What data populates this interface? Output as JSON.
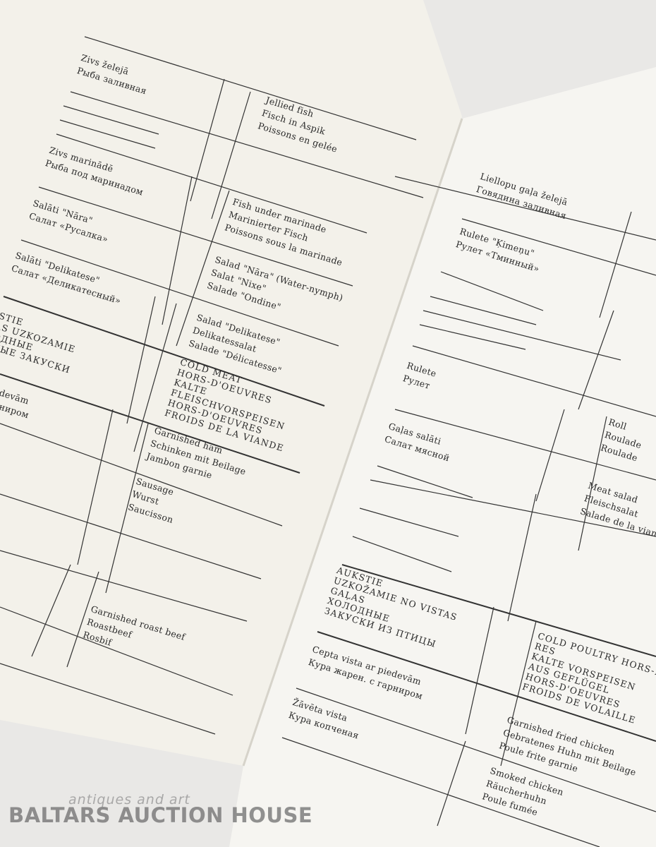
{
  "left_page": {
    "items": [
      {
        "lv": "Zivs želejā",
        "ru": "Рыба заливная",
        "en": "Jellied fish",
        "de": "Fisch in Aspik",
        "fr": "Poissons en gelée"
      },
      {
        "lv": "Zivs marinādē",
        "ru": "Рыба под маринадом",
        "en": "Fish under marinade",
        "de": "Marinierter Fisch",
        "fr": "Poissons sous la marinade"
      },
      {
        "lv": "Salāti \"Nāra\"",
        "ru": "Салат «Русалка»",
        "en": "Salad \"Nāra\" (Water-nymph)",
        "de": "Salat \"Nixe\"",
        "fr": "Salade \"Ondine\""
      },
      {
        "lv": "Salāti \"Delikatese\"",
        "ru": "Салат «Деликатесный»",
        "en": "Salad \"Delikatese\"",
        "de": "Delikatessalat",
        "fr": "Salade \"Délicatesse\""
      }
    ],
    "section": {
      "lv": [
        "AUKSTIE",
        "GAĻAS UZKOZAMIE"
      ],
      "ru": [
        "ХОЛОДНЫЕ",
        "МЯСНЫЕ ЗАКУСКИ"
      ],
      "foreign": [
        "COLD MEAT",
        "HORS-D'OEUVRES",
        "KALTE",
        "FLEISCHVORSPEISEN",
        "HORS-D'OEUVRES",
        "FROIDS DE LA VIANDE"
      ]
    },
    "meat_items": [
      {
        "lv": "Šķiņķis ar piedevām",
        "ru": "Ветчина с гарниром",
        "en": "Garnished ham",
        "de": "Schinken mit Beilage",
        "fr": "Jambon garnie"
      },
      {
        "en": "Sausage",
        "de": "Wurst",
        "fr": "Saucisson"
      },
      {
        "en": "Garnished roast beef",
        "de": "Roastbeef",
        "fr": "Rosbif"
      }
    ]
  },
  "right_page": {
    "items": [
      {
        "lv": "Liellopu gaļa želejā",
        "ru": "Говядина заливная"
      },
      {
        "lv": "Rulete \"Ķimeņu\"",
        "ru": "Рулет «Тминный»"
      },
      {
        "lv": "Rulete",
        "ru": "Рулет",
        "en": "Roll",
        "de": "Roulade",
        "fr": "Roulade"
      },
      {
        "lv": "Gaļas salāti",
        "ru": "Салат мясной",
        "en": "Meat salad",
        "de": "Fleischsalat",
        "fr": "Salade de la viande"
      }
    ],
    "section": {
      "lv": [
        "AUKSTIE",
        "UZKOŽAMIE NO VISTAS",
        "GAĻAS"
      ],
      "ru": [
        "ХОЛОДНЫЕ",
        "ЗАКУСКИ ИЗ ПТИЦЫ"
      ],
      "foreign": [
        "COLD POULTRY HORS-D'OEUV-",
        "RES",
        "KALTE VORSPEISEN",
        "AUS GEFLÜGEL",
        "HORS-D'OEUVRES",
        "FROIDS DE VOLAILLE"
      ]
    },
    "poultry_items": [
      {
        "lv": "Cepta vista ar piedevām",
        "ru": "Кура жарен. с гарниром",
        "en": "Garnished fried chicken",
        "de": "Gebratenes Huhn mit Beilage",
        "fr": "Poule frite garnie"
      },
      {
        "lv": "Žāvēta vista",
        "ru": "Кура копченая",
        "en": "Smoked chicken",
        "de": "Räucherhuhn",
        "fr": "Poule fumée"
      }
    ]
  },
  "watermark": {
    "tagline": "antiques and art",
    "name": "BALTARS AUCTION HOUSE"
  },
  "colors": {
    "paper": "#f4f2ec",
    "background": "#e9e8e6",
    "ink": "#2a2a2a"
  }
}
